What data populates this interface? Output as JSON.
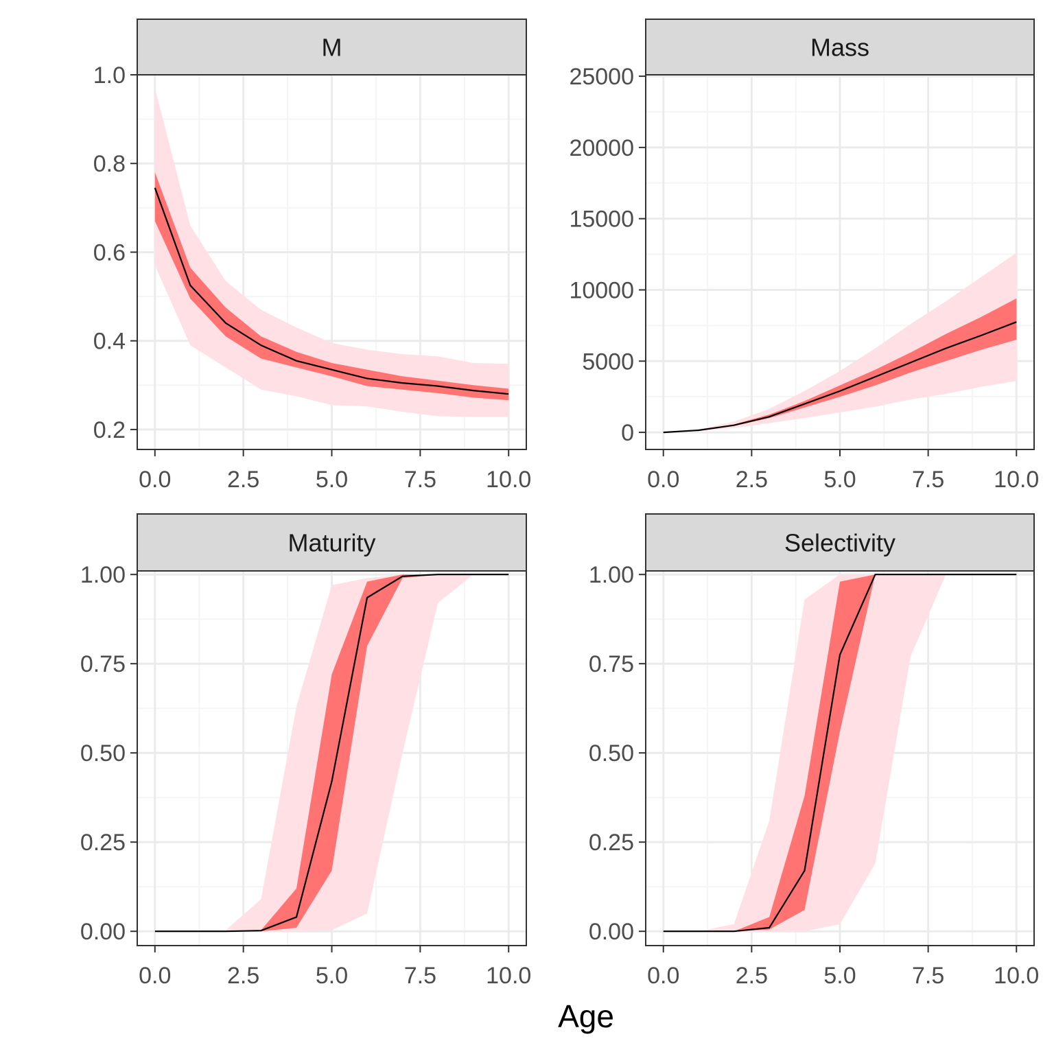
{
  "xlabel": "Age",
  "colors": {
    "outer_band": "#ffe0e4",
    "inner_band": "#ff7373",
    "median_line": "#000000",
    "strip_fill": "#d9d9d9",
    "grid_major": "#ebebeb",
    "grid_minor": "#f5f5f5",
    "panel_border": "#333333"
  },
  "chart_data": [
    {
      "type": "area",
      "title": "M",
      "x": [
        0,
        1,
        2,
        3,
        4,
        5,
        6,
        7,
        8,
        9,
        10
      ],
      "xticks": [
        "0.0",
        "2.5",
        "5.0",
        "7.5",
        "10.0"
      ],
      "yticks": [
        "0.2",
        "0.4",
        "0.6",
        "0.8",
        "1.0"
      ],
      "xlim": [
        -0.5,
        10.5
      ],
      "ylim": [
        0.155,
        1.0
      ],
      "grid": true,
      "median": [
        0.745,
        0.525,
        0.44,
        0.39,
        0.355,
        0.335,
        0.315,
        0.305,
        0.298,
        0.288,
        0.28
      ],
      "inner_band": {
        "lower": [
          0.67,
          0.495,
          0.41,
          0.36,
          0.34,
          0.32,
          0.298,
          0.29,
          0.282,
          0.272,
          0.266
        ],
        "upper": [
          0.78,
          0.565,
          0.475,
          0.41,
          0.375,
          0.35,
          0.335,
          0.32,
          0.31,
          0.3,
          0.292
        ]
      },
      "outer_band": {
        "lower": [
          0.57,
          0.39,
          0.34,
          0.29,
          0.275,
          0.255,
          0.252,
          0.24,
          0.23,
          0.228,
          0.228
        ],
        "upper": [
          0.97,
          0.66,
          0.535,
          0.47,
          0.43,
          0.395,
          0.38,
          0.37,
          0.365,
          0.35,
          0.348
        ]
      }
    },
    {
      "type": "area",
      "title": "Mass",
      "x": [
        0,
        1,
        2,
        3,
        4,
        5,
        6,
        7,
        8,
        9,
        10
      ],
      "xticks": [
        "0.0",
        "2.5",
        "5.0",
        "7.5",
        "10.0"
      ],
      "yticks": [
        "0",
        "5000",
        "10000",
        "15000",
        "20000",
        "25000"
      ],
      "ytick_values": [
        0,
        5000,
        10000,
        15000,
        20000,
        25000
      ],
      "xlim": [
        -0.5,
        10.5
      ],
      "ylim": [
        -1200,
        25100
      ],
      "grid": true,
      "median": [
        0,
        150,
        500,
        1100,
        2000,
        2900,
        3900,
        4900,
        5900,
        6800,
        7750
      ],
      "inner_band": {
        "lower": [
          0,
          140,
          450,
          1000,
          1750,
          2500,
          3300,
          4200,
          5000,
          5800,
          6500
        ],
        "upper": [
          0,
          170,
          560,
          1250,
          2200,
          3300,
          4400,
          5600,
          6900,
          8100,
          9400
        ]
      },
      "outer_band": {
        "lower": [
          0,
          90,
          310,
          650,
          1000,
          1400,
          1800,
          2300,
          2700,
          3200,
          3600
        ],
        "upper": [
          0,
          210,
          750,
          1650,
          2900,
          4300,
          5900,
          7600,
          9200,
          10900,
          12600
        ]
      }
    },
    {
      "type": "area",
      "title": "Maturity",
      "x": [
        0,
        1,
        2,
        3,
        4,
        5,
        6,
        7,
        8,
        9,
        10
      ],
      "xticks": [
        "0.0",
        "2.5",
        "5.0",
        "7.5",
        "10.0"
      ],
      "yticks": [
        "0.00",
        "0.25",
        "0.50",
        "0.75",
        "1.00"
      ],
      "xlim": [
        -0.5,
        10.5
      ],
      "ylim": [
        -0.04,
        1.01
      ],
      "grid": true,
      "median": [
        0,
        0,
        0,
        0.002,
        0.04,
        0.42,
        0.935,
        0.995,
        1.0,
        1.0,
        1.0
      ],
      "inner_band": {
        "lower": [
          0,
          0,
          0,
          0,
          0.01,
          0.17,
          0.8,
          0.99,
          1.0,
          1.0,
          1.0
        ],
        "upper": [
          0,
          0,
          0,
          0.003,
          0.12,
          0.72,
          0.98,
          1.0,
          1.0,
          1.0,
          1.0
        ]
      },
      "outer_band": {
        "lower": [
          0,
          0,
          0,
          0,
          0,
          0.003,
          0.05,
          0.5,
          0.92,
          1.0,
          1.0
        ],
        "upper": [
          0,
          0,
          0.003,
          0.09,
          0.63,
          0.97,
          0.99,
          1.0,
          1.0,
          1.0,
          1.0
        ]
      }
    },
    {
      "type": "area",
      "title": "Selectivity",
      "x": [
        0,
        1,
        2,
        3,
        4,
        5,
        6,
        7,
        8,
        9,
        10
      ],
      "xticks": [
        "0.0",
        "2.5",
        "5.0",
        "7.5",
        "10.0"
      ],
      "yticks": [
        "0.00",
        "0.25",
        "0.50",
        "0.75",
        "1.00"
      ],
      "xlim": [
        -0.5,
        10.5
      ],
      "ylim": [
        -0.04,
        1.01
      ],
      "grid": true,
      "median": [
        0,
        0,
        0,
        0.01,
        0.17,
        0.775,
        1.0,
        1.0,
        1.0,
        1.0,
        1.0
      ],
      "inner_band": {
        "lower": [
          0,
          0,
          0,
          0.005,
          0.06,
          0.56,
          1.0,
          1.0,
          1.0,
          1.0,
          1.0
        ],
        "upper": [
          0,
          0,
          0,
          0.04,
          0.38,
          0.98,
          1.0,
          1.0,
          1.0,
          1.0,
          1.0
        ]
      },
      "outer_band": {
        "lower": [
          0,
          0,
          0,
          0,
          0,
          0.02,
          0.19,
          0.77,
          1.0,
          1.0,
          1.0
        ],
        "upper": [
          0,
          0,
          0.02,
          0.31,
          0.93,
          1.0,
          1.0,
          1.0,
          1.0,
          1.0,
          1.0
        ]
      }
    }
  ]
}
